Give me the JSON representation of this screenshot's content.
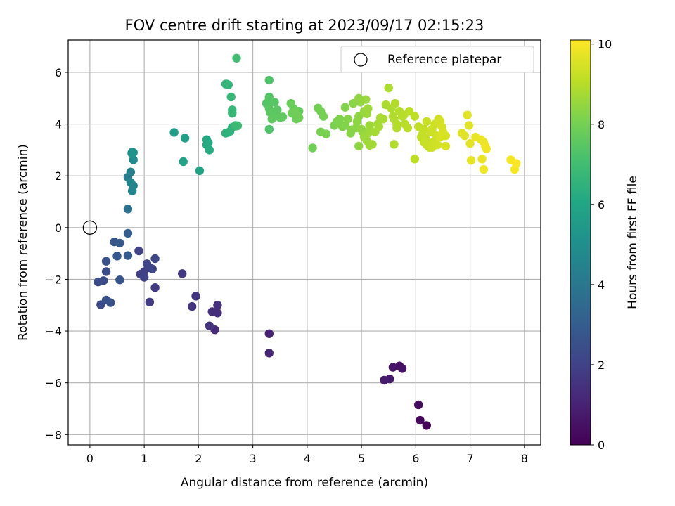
{
  "chart_data": {
    "type": "scatter",
    "title": "FOV centre drift starting at 2023/09/17 02:15:23",
    "xlabel": "Angular distance from reference (arcmin)",
    "ylabel": "Rotation from reference (arcmin)",
    "xlim": [
      -0.4,
      8.3
    ],
    "ylim": [
      -8.4,
      7.25
    ],
    "xticks": [
      0,
      1,
      2,
      3,
      4,
      5,
      6,
      7,
      8
    ],
    "yticks": [
      -8,
      -6,
      -4,
      -2,
      0,
      2,
      4,
      6
    ],
    "grid": true,
    "legend": {
      "placement": "top-right",
      "entries": [
        "Reference platepar"
      ]
    },
    "reference_point": {
      "name": "Reference platepar",
      "x": 0,
      "y": 0,
      "marker": "open-circle"
    },
    "colorbar": {
      "label": "Hours from first FF file",
      "range": [
        0,
        10.1
      ],
      "ticks": [
        0,
        2,
        4,
        6,
        8,
        10
      ],
      "colormap": "viridis"
    },
    "series": [
      {
        "color_encoding": "hours",
        "x": [
          6.2,
          6.08,
          6.05,
          5.7,
          5.75,
          5.58,
          5.52,
          5.42,
          3.3,
          3.3,
          2.3,
          2.35,
          2.25,
          2.35,
          2.2,
          1.88,
          1.95,
          1.7,
          1.2,
          1.1,
          0.93,
          1.0,
          1.1,
          1.0,
          0.9,
          1.05,
          1.15,
          1.2,
          0.2,
          0.15,
          0.25,
          0.3,
          0.38,
          0.3,
          0.3,
          0.55,
          0.45,
          0.5,
          0.55,
          0.7,
          0.7,
          0.7,
          0.7,
          0.75,
          0.8,
          0.78,
          0.75,
          0.8,
          0.78,
          0.8,
          0.77,
          0.78
        ],
        "y": [
          -7.65,
          -7.45,
          -6.85,
          -5.35,
          -5.45,
          -5.4,
          -5.85,
          -5.9,
          -4.1,
          -4.85,
          -3.95,
          -3.3,
          -3.25,
          -3.0,
          -3.8,
          -3.05,
          -2.65,
          -1.78,
          -2.32,
          -2.88,
          -1.8,
          -1.7,
          -1.55,
          -1.92,
          -0.9,
          -1.4,
          -1.6,
          -1.2,
          -2.98,
          -2.1,
          -2.05,
          -1.7,
          -2.9,
          -1.3,
          -2.8,
          -2.02,
          -0.55,
          -1.1,
          -0.6,
          -1.08,
          -0.22,
          0.72,
          1.95,
          2.15,
          1.62,
          1.42,
          1.75,
          2.62,
          2.92,
          2.9,
          2.88,
          2.85
        ],
        "hours": [
          0.1,
          0.2,
          0.3,
          0.4,
          0.5,
          0.6,
          0.7,
          0.8,
          1.0,
          1.1,
          1.3,
          1.35,
          1.4,
          1.45,
          1.5,
          1.55,
          1.6,
          1.7,
          1.75,
          1.8,
          1.85,
          1.9,
          1.95,
          2.0,
          2.05,
          2.1,
          2.15,
          2.2,
          2.3,
          2.35,
          2.4,
          2.45,
          2.5,
          2.55,
          2.6,
          2.65,
          2.75,
          2.8,
          2.85,
          2.9,
          3.0,
          3.8,
          4.2,
          4.4,
          4.55,
          4.6,
          4.65,
          4.8,
          4.9,
          5.0,
          5.1,
          5.2
        ]
      },
      {
        "color_encoding": "hours",
        "x": [
          1.55,
          1.75,
          1.72,
          2.02,
          2.15,
          2.15,
          2.18,
          2.2,
          2.5,
          2.52,
          2.55,
          2.6,
          2.62,
          2.62,
          2.7,
          2.55,
          2.5,
          2.58,
          2.62,
          2.68,
          2.68,
          2.72,
          3.3,
          3.3,
          3.25,
          3.3,
          3.4,
          3.3,
          3.45,
          3.32,
          3.4,
          3.35,
          3.5,
          3.55,
          3.3,
          3.85,
          3.8,
          3.75,
          3.7,
          3.72,
          3.8,
          3.85,
          3.78
        ],
        "y": [
          3.68,
          3.46,
          2.55,
          2.2,
          3.4,
          3.2,
          3.28,
          3.0,
          5.55,
          5.55,
          5.52,
          5.05,
          4.55,
          4.42,
          6.55,
          3.68,
          3.65,
          3.72,
          3.88,
          3.92,
          3.95,
          3.94,
          5.7,
          5.05,
          4.8,
          4.95,
          4.85,
          4.6,
          4.55,
          4.45,
          4.3,
          4.2,
          4.25,
          4.28,
          3.8,
          4.5,
          4.4,
          4.6,
          4.8,
          4.42,
          4.2,
          4.25,
          4.48
        ],
        "hours": [
          5.6,
          5.7,
          5.8,
          5.9,
          6.1,
          6.15,
          6.2,
          6.25,
          6.6,
          6.62,
          6.64,
          6.7,
          6.75,
          6.78,
          7.0,
          6.5,
          6.48,
          6.52,
          6.55,
          6.8,
          6.82,
          6.85,
          7.3,
          7.35,
          7.4,
          7.42,
          7.45,
          7.48,
          7.5,
          7.52,
          7.55,
          7.58,
          7.6,
          7.62,
          7.3,
          7.7,
          7.72,
          7.75,
          7.8,
          7.82,
          7.85,
          7.88,
          7.9
        ]
      },
      {
        "color_encoding": "hours",
        "x": [
          4.1,
          4.2,
          4.25,
          4.3,
          4.25,
          4.35,
          4.5,
          4.55,
          4.6,
          4.65,
          4.7,
          4.7,
          4.75,
          4.8,
          4.82,
          4.85,
          4.9,
          4.92,
          4.95,
          4.95,
          4.98,
          5.0,
          5.02,
          5.05,
          5.05,
          5.08,
          5.1,
          5.12,
          5.12,
          5.15,
          5.15,
          5.15,
          4.95,
          5.05,
          5.1,
          5.2,
          5.25,
          5.3,
          5.32,
          5.35,
          5.4,
          5.45,
          5.5,
          5.55,
          5.58,
          5.6,
          5.62,
          5.65,
          5.65,
          5.7,
          5.75,
          5.78,
          5.8,
          5.85,
          5.88,
          5.6,
          5.98,
          5.98,
          6.05,
          6.1,
          6.12,
          6.15,
          6.18,
          6.2,
          6.22,
          6.25,
          6.28,
          6.3,
          6.32,
          6.35,
          6.38,
          6.4,
          6.42,
          6.45,
          6.48,
          6.5,
          6.52,
          6.55,
          6.15,
          6.2,
          6.3,
          6.45,
          6.5,
          6.55,
          6.85,
          6.9,
          6.95,
          6.98,
          7.0,
          7.02,
          7.1,
          7.2,
          7.22,
          7.25,
          7.25,
          7.28,
          7.3,
          7.75,
          7.82,
          7.85
        ],
        "y": [
          3.08,
          4.62,
          4.5,
          4.3,
          3.7,
          3.62,
          3.95,
          4.1,
          4.2,
          3.9,
          3.95,
          4.65,
          4.2,
          3.65,
          3.78,
          4.8,
          3.85,
          4.1,
          4.3,
          5.0,
          4.85,
          3.8,
          3.7,
          4.5,
          4.45,
          4.95,
          4.4,
          3.65,
          4.6,
          3.95,
          3.75,
          3.18,
          3.15,
          3.5,
          3.35,
          3.22,
          3.7,
          4.0,
          3.9,
          4.25,
          4.2,
          4.75,
          5.4,
          4.6,
          4.3,
          4.2,
          4.8,
          4.0,
          3.85,
          4.5,
          4.3,
          4.35,
          4.0,
          3.85,
          4.5,
          3.22,
          2.65,
          4.3,
          3.9,
          3.5,
          3.6,
          3.8,
          3.45,
          4.1,
          3.2,
          3.1,
          3.7,
          3.8,
          3.3,
          4.0,
          3.55,
          3.2,
          4.2,
          4.1,
          3.9,
          3.7,
          3.6,
          3.55,
          3.3,
          3.2,
          3.1,
          3.5,
          3.6,
          3.15,
          3.65,
          3.55,
          4.35,
          3.95,
          3.25,
          2.6,
          3.5,
          3.4,
          2.65,
          3.3,
          2.25,
          3.15,
          3.05,
          2.62,
          2.25,
          2.48
        ],
        "hours": [
          7.9,
          7.95,
          8.0,
          8.02,
          8.05,
          8.08,
          8.1,
          8.12,
          8.15,
          8.18,
          8.2,
          8.22,
          8.25,
          8.28,
          8.3,
          8.32,
          8.35,
          8.38,
          8.4,
          8.42,
          8.44,
          8.46,
          8.48,
          8.5,
          8.52,
          8.54,
          8.56,
          8.58,
          8.6,
          8.62,
          8.64,
          8.66,
          8.4,
          8.6,
          8.65,
          8.7,
          8.72,
          8.74,
          8.76,
          8.78,
          8.8,
          8.82,
          8.84,
          8.86,
          8.88,
          8.9,
          8.92,
          8.94,
          8.95,
          8.96,
          8.98,
          9.0,
          9.02,
          9.04,
          9.06,
          8.9,
          9.1,
          9.12,
          9.14,
          9.16,
          9.18,
          9.2,
          9.22,
          9.24,
          9.26,
          9.28,
          9.3,
          9.32,
          9.34,
          9.36,
          9.38,
          9.4,
          9.42,
          9.44,
          9.46,
          9.48,
          9.5,
          9.52,
          9.25,
          9.3,
          9.35,
          9.5,
          9.52,
          9.55,
          9.62,
          9.64,
          9.66,
          9.68,
          9.7,
          9.72,
          9.75,
          9.78,
          9.8,
          9.82,
          9.84,
          9.86,
          9.88,
          9.95,
          10.0,
          10.05
        ]
      }
    ]
  }
}
